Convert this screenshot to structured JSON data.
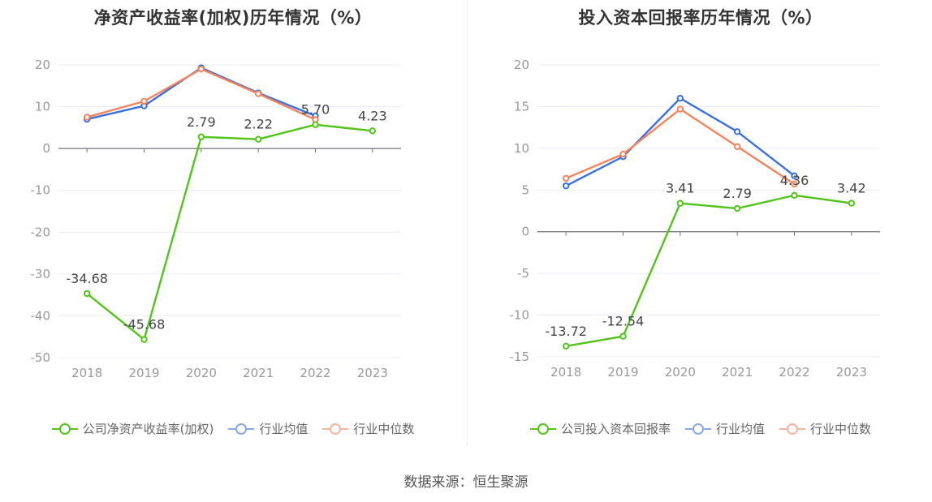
{
  "colors": {
    "company": "#52c41a",
    "avg": "#3a6fe0",
    "median": "#f5835b",
    "grid": "#e8ecf4",
    "axis": "#6e7079",
    "tick": "#999999"
  },
  "chart_data": [
    {
      "type": "line",
      "title": "净资产收益率(加权)历年情况（%）",
      "categories": [
        "2018",
        "2019",
        "2020",
        "2021",
        "2022",
        "2023"
      ],
      "ylim": [
        -50,
        20
      ],
      "yticks": [
        20,
        10,
        0,
        -10,
        -20,
        -30,
        -40,
        -50
      ],
      "grid": true,
      "legend_position": "bottom",
      "series": [
        {
          "name": "公司净资产收益率(加权)",
          "color_key": "company",
          "labels": true,
          "values": [
            -34.68,
            -45.68,
            2.79,
            2.22,
            5.7,
            4.23
          ]
        },
        {
          "name": "行业均值",
          "color_key": "avg",
          "labels": false,
          "values": [
            7.0,
            10.2,
            19.3,
            13.3,
            7.8,
            null
          ]
        },
        {
          "name": "行业中位数",
          "color_key": "median",
          "labels": false,
          "values": [
            7.5,
            11.3,
            19.0,
            13.1,
            6.9,
            null
          ]
        }
      ],
      "data_labels": [
        "-34.68",
        "-45.68",
        "2.79",
        "2.22",
        "5.70",
        "4.23"
      ]
    },
    {
      "type": "line",
      "title": "投入资本回报率历年情况（%）",
      "categories": [
        "2018",
        "2019",
        "2020",
        "2021",
        "2022",
        "2023"
      ],
      "ylim": [
        -15,
        20
      ],
      "yticks": [
        20,
        15,
        10,
        5,
        0,
        -5,
        -10,
        -15
      ],
      "grid": true,
      "legend_position": "bottom",
      "series": [
        {
          "name": "公司投入资本回报率",
          "color_key": "company",
          "labels": true,
          "values": [
            -13.72,
            -12.54,
            3.41,
            2.79,
            4.36,
            3.42
          ]
        },
        {
          "name": "行业均值",
          "color_key": "avg",
          "labels": false,
          "values": [
            5.5,
            9.0,
            16.0,
            12.0,
            6.7,
            null
          ]
        },
        {
          "name": "行业中位数",
          "color_key": "median",
          "labels": false,
          "values": [
            6.4,
            9.3,
            14.7,
            10.2,
            5.7,
            null
          ]
        }
      ],
      "data_labels": [
        "-13.72",
        "-12.54",
        "3.41",
        "2.79",
        "4.36",
        "3.42"
      ]
    }
  ],
  "left": {
    "title": "净资产收益率(加权)历年情况（%）",
    "legend": [
      "公司净资产收益率(加权)",
      "行业均值",
      "行业中位数"
    ]
  },
  "right": {
    "title": "投入资本回报率历年情况（%）",
    "legend": [
      "公司投入资本回报率",
      "行业均值",
      "行业中位数"
    ]
  },
  "source": "数据来源：恒生聚源"
}
